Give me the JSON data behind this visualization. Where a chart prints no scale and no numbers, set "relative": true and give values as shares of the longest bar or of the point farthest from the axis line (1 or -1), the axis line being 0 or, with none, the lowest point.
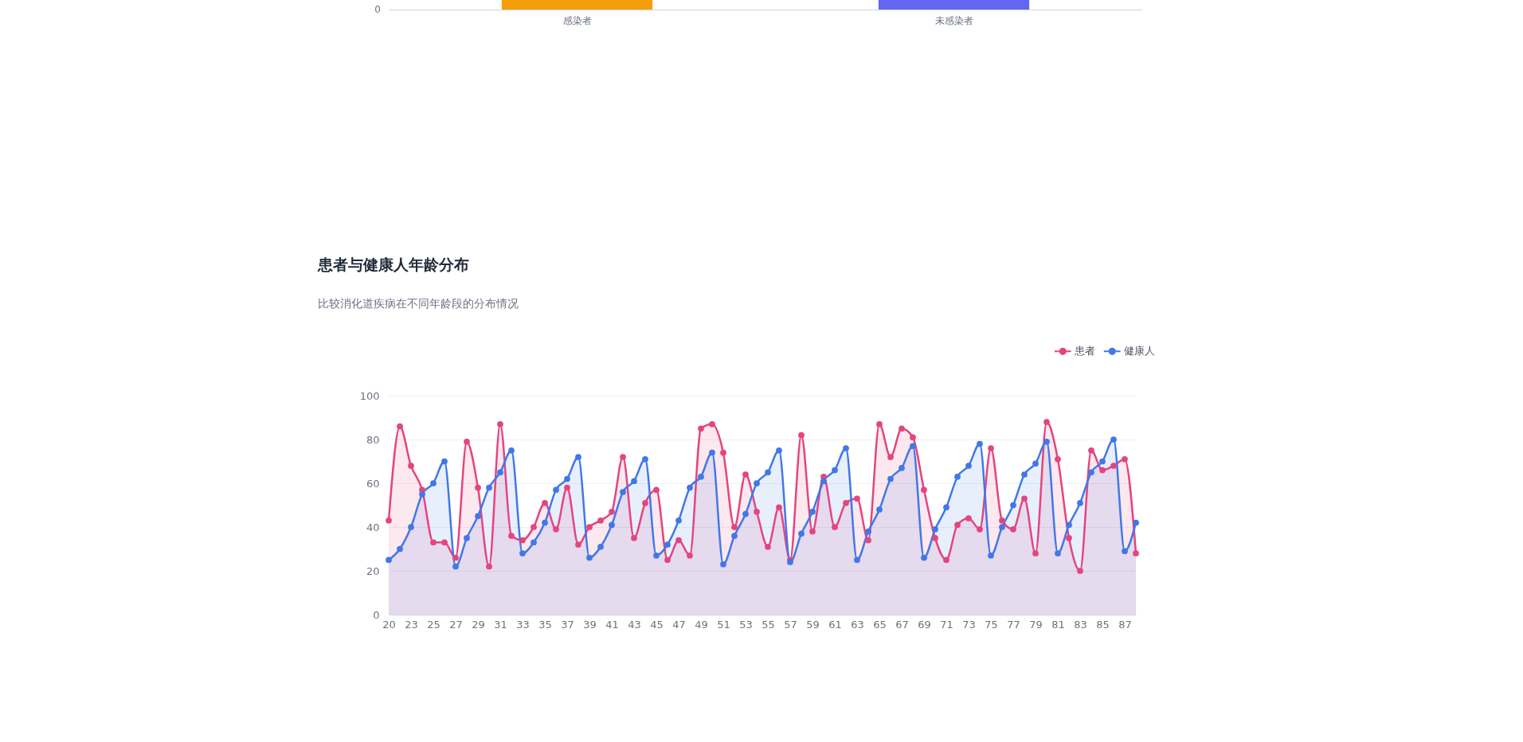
{
  "chart_data": [
    {
      "type": "bar",
      "categories": [
        "感染者",
        "未感染者"
      ],
      "values": [
        1,
        1
      ],
      "colors": [
        "#f59e0b",
        "#6366f1"
      ],
      "relative": true,
      "annotations": [
        "0"
      ]
    },
    {
      "type": "area",
      "title": "患者与健康人年龄分布",
      "subtitle": "比较消化道疾病在不同年龄段的分布情况",
      "categories": [
        "20",
        null,
        "23",
        null,
        "25",
        null,
        "27",
        null,
        "29",
        null,
        "31",
        null,
        "33",
        null,
        "35",
        null,
        "37",
        null,
        "39",
        null,
        "41",
        null,
        "43",
        null,
        "45",
        null,
        "47",
        null,
        "49",
        null,
        "51",
        null,
        "53",
        null,
        "55",
        null,
        "57",
        null,
        "59",
        null,
        "61",
        null,
        "63",
        null,
        "65",
        null,
        "67",
        null,
        "69",
        null,
        "71",
        null,
        "73",
        null,
        "75",
        null,
        "77",
        null,
        "79",
        null,
        "81",
        null,
        "83",
        null,
        "85",
        null,
        "87",
        null
      ],
      "series": [
        {
          "name": "患者",
          "color": "#e4457f",
          "values": [
            43,
            86,
            68,
            57,
            33,
            33,
            26,
            79,
            58,
            22,
            87,
            36,
            34,
            40,
            51,
            39,
            58,
            32,
            40,
            43,
            47,
            72,
            35,
            51,
            57,
            25,
            34,
            27,
            85,
            87,
            74,
            40,
            64,
            47,
            31,
            49,
            25,
            82,
            38,
            63,
            40,
            51,
            53,
            34,
            87,
            72,
            85,
            81,
            57,
            35,
            25,
            41,
            44,
            39,
            76,
            43,
            39,
            53,
            28,
            88,
            71,
            35,
            20,
            75,
            66,
            68,
            71,
            28
          ]
        },
        {
          "name": "健康人",
          "color": "#4178e6",
          "values": [
            25,
            30,
            40,
            55,
            60,
            70,
            22,
            35,
            45,
            58,
            65,
            75,
            28,
            33,
            42,
            57,
            62,
            72,
            26,
            31,
            41,
            56,
            61,
            71,
            27,
            32,
            43,
            58,
            63,
            74,
            23,
            36,
            46,
            60,
            65,
            75,
            24,
            37,
            47,
            61,
            66,
            76,
            25,
            38,
            48,
            62,
            67,
            77,
            26,
            39,
            49,
            63,
            68,
            78,
            27,
            40,
            50,
            64,
            69,
            79,
            28,
            41,
            51,
            65,
            70,
            80,
            29,
            42
          ]
        }
      ],
      "ylim": [
        0,
        100
      ],
      "yticks": [
        0,
        20,
        40,
        60,
        80,
        100
      ],
      "grid": "y",
      "legend": "top right",
      "marker": "circle",
      "line_style": "solid"
    }
  ]
}
